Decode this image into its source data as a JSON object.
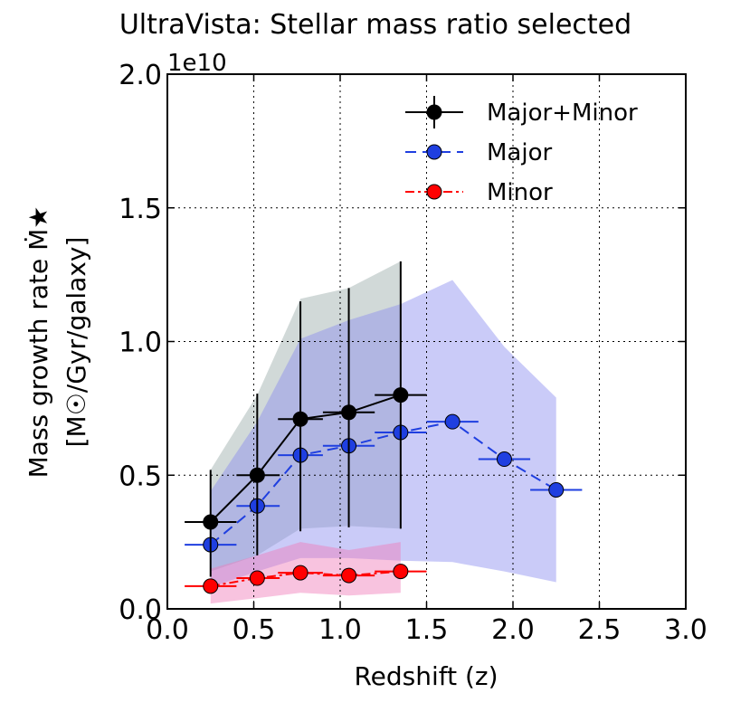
{
  "chart_data": {
    "type": "line",
    "title": "UltraVista: Stellar mass ratio selected",
    "xlabel": "Redshift (z)",
    "ylabel_line1": "Mass growth rate Ṁ★",
    "ylabel_line2": "[M☉/Gyr/galaxy]",
    "y_offset_label": "1e10",
    "xlim": [
      0.0,
      3.0
    ],
    "ylim": [
      0.0,
      2.0
    ],
    "grid": true,
    "legend_position": "top-right",
    "x_ticks": [
      0.0,
      0.5,
      1.0,
      1.5,
      2.0,
      2.5,
      3.0
    ],
    "x_tick_labels": [
      "0.0",
      "0.5",
      "1.0",
      "1.5",
      "2.0",
      "2.5",
      "3.0"
    ],
    "y_ticks": [
      0.0,
      0.5,
      1.0,
      1.5,
      2.0
    ],
    "y_tick_labels": [
      "0.0",
      "0.5",
      "1.0",
      "1.5",
      "2.0"
    ],
    "series": [
      {
        "name": "Major+Minor",
        "color": "#000000",
        "line_style": "solid",
        "x": [
          0.25,
          0.52,
          0.77,
          1.05,
          1.35
        ],
        "y": [
          0.325,
          0.5,
          0.71,
          0.735,
          0.8
        ],
        "xerr_low": [
          0.15,
          0.12,
          0.13,
          0.15,
          0.15
        ],
        "xerr_high": [
          0.15,
          0.13,
          0.13,
          0.15,
          0.15
        ],
        "yerr_low": [
          0.205,
          0.3,
          0.42,
          0.43,
          0.5
        ],
        "yerr_high": [
          0.195,
          0.305,
          0.44,
          0.465,
          0.5
        ],
        "band_color": "#9aaaa8",
        "band_x": [
          0.25,
          0.52,
          0.77,
          1.05,
          1.35
        ],
        "band_low": [
          0.14,
          0.2,
          0.3,
          0.31,
          0.3
        ],
        "band_high": [
          0.52,
          0.8,
          1.16,
          1.2,
          1.3
        ]
      },
      {
        "name": "Major",
        "color": "#1f3fe0",
        "line_style": "dashed",
        "x": [
          0.25,
          0.52,
          0.77,
          1.05,
          1.35,
          1.65,
          1.95,
          2.25
        ],
        "y": [
          0.24,
          0.385,
          0.575,
          0.61,
          0.66,
          0.7,
          0.56,
          0.445
        ],
        "xerr_low": [
          0.15,
          0.12,
          0.13,
          0.15,
          0.15,
          0.15,
          0.15,
          0.15
        ],
        "xerr_high": [
          0.15,
          0.13,
          0.13,
          0.15,
          0.15,
          0.15,
          0.15,
          0.15
        ],
        "band_color": "#8a8cf0",
        "band_x": [
          0.25,
          0.52,
          0.77,
          1.05,
          1.35,
          1.65,
          1.95,
          2.25
        ],
        "band_low": [
          0.08,
          0.14,
          0.19,
          0.19,
          0.18,
          0.175,
          0.14,
          0.1
        ],
        "band_high": [
          0.44,
          0.7,
          1.01,
          1.08,
          1.14,
          1.23,
          0.98,
          0.79
        ]
      },
      {
        "name": "Minor",
        "color": "#ff0000",
        "line_style": "dashdot",
        "x": [
          0.25,
          0.52,
          0.77,
          1.05,
          1.35
        ],
        "y": [
          0.085,
          0.115,
          0.135,
          0.125,
          0.14
        ],
        "xerr_low": [
          0.15,
          0.12,
          0.13,
          0.15,
          0.15
        ],
        "xerr_high": [
          0.15,
          0.13,
          0.13,
          0.15,
          0.15
        ],
        "band_color": "#f07ab8",
        "band_x": [
          0.25,
          0.52,
          0.77,
          1.05,
          1.35
        ],
        "band_low": [
          0.02,
          0.04,
          0.06,
          0.05,
          0.06
        ],
        "band_high": [
          0.15,
          0.2,
          0.25,
          0.22,
          0.25
        ]
      }
    ]
  }
}
